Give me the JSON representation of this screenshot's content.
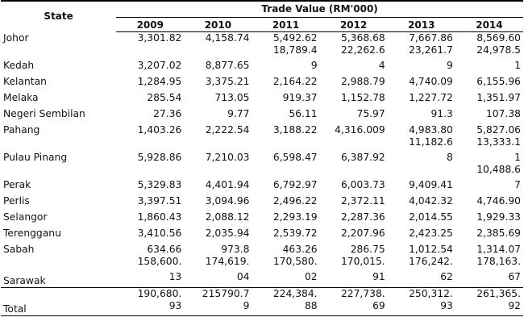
{
  "header": {
    "state_label": "State",
    "trade_value_label": "Trade Value (RM'000)",
    "years": [
      "2009",
      "2010",
      "2011",
      "2012",
      "2013",
      "2014"
    ]
  },
  "rows": [
    {
      "state": "Johor",
      "values": [
        "3,301.82",
        "4,158.74",
        "5,492.62\n18,789.4",
        "5,368.68\n22,262.6",
        "7,667.86\n23,261.7",
        "8,569.60\n24,978.5"
      ]
    },
    {
      "state": "Kedah",
      "values": [
        "3,207.02",
        "8,877.65",
        "9",
        "4",
        "9",
        "1"
      ]
    },
    {
      "state": "Kelantan",
      "values": [
        "1,284.95",
        "3,375.21",
        "2,164.22",
        "2,988.79",
        "4,740.09",
        "6,155.96"
      ]
    },
    {
      "state": "Melaka",
      "values": [
        "285.54",
        "713.05",
        "919.37",
        "1,152.78",
        "1,227.72",
        "1,351.97"
      ]
    },
    {
      "state": "Negeri Sembilan",
      "values": [
        "27.36",
        "9.77",
        "56.11",
        "75.97",
        "91.3",
        "107.38"
      ]
    },
    {
      "state": "Pahang",
      "values": [
        "1,403.26",
        "2,222.54",
        "3,188.22",
        "4,316.009",
        "4,983.80\n11,182.6",
        "5,827.06\n13,333.1"
      ]
    },
    {
      "state": "Pulau Pinang",
      "values": [
        "5,928.86",
        "7,210.03",
        "6,598.47",
        "6,387.92",
        "8",
        "1\n10,488.6"
      ]
    },
    {
      "state": "Perak",
      "values": [
        "5,329.83",
        "4,401.94",
        "6,792.97",
        "6,003.73",
        "9,409.41",
        "7"
      ]
    },
    {
      "state": "Perlis",
      "values": [
        "3,397.51",
        "3,094.96",
        "2,496.22",
        "2,372.11",
        "4,042.32",
        "4,746.90"
      ]
    },
    {
      "state": "Selangor",
      "values": [
        "1,860.43",
        "2,088.12",
        "2,293.19",
        "2,287.36",
        "2,014.55",
        "1,929.33"
      ]
    },
    {
      "state": "Terengganu",
      "values": [
        "3,410.56",
        "2,035.94",
        "2,539.72",
        "2,207.96",
        "2,423.25",
        "2,385.69"
      ]
    },
    {
      "state": "Sabah",
      "values": [
        "634.66\n158,600.",
        "973.8\n174,619.",
        "463.26\n170,580.",
        "286.75\n170,015.",
        "1,012.54\n176,242.",
        "1,314.07\n178,163."
      ]
    },
    {
      "state": "Sarawak",
      "values": [
        "13",
        "04",
        "02",
        "91",
        "62",
        "67"
      ]
    }
  ],
  "total": {
    "label": "Total",
    "values": [
      "190,680.\n93",
      "215790.7\n9",
      "224,384.\n88",
      "227,738.\n69",
      "250,312.\n93",
      "261,365.\n92"
    ]
  }
}
